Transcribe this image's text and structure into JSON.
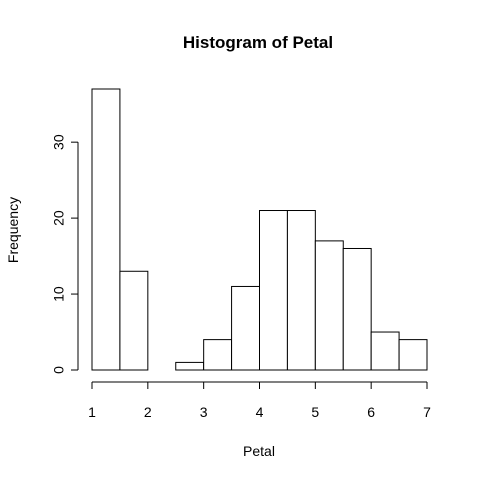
{
  "chart_data": {
    "type": "bar",
    "title": "Histogram of Petal",
    "xlabel": "Petal",
    "ylabel": "Frequency",
    "bins": [
      [
        1.0,
        1.5
      ],
      [
        1.5,
        2.0
      ],
      [
        2.0,
        2.5
      ],
      [
        2.5,
        3.0
      ],
      [
        3.0,
        3.5
      ],
      [
        3.5,
        4.0
      ],
      [
        4.0,
        4.5
      ],
      [
        4.5,
        5.0
      ],
      [
        5.0,
        5.5
      ],
      [
        5.5,
        6.0
      ],
      [
        6.0,
        6.5
      ],
      [
        6.5,
        7.0
      ]
    ],
    "values": [
      37,
      13,
      0,
      1,
      4,
      11,
      21,
      21,
      17,
      16,
      5,
      4
    ],
    "x_ticks": [
      1,
      2,
      3,
      4,
      5,
      6,
      7
    ],
    "y_ticks": [
      0,
      10,
      20,
      30
    ],
    "xlim": [
      1,
      7
    ],
    "ylim": [
      0,
      37
    ],
    "grid": false,
    "colors": {
      "bar_fill": "#ffffff",
      "bar_stroke": "#000000"
    }
  }
}
